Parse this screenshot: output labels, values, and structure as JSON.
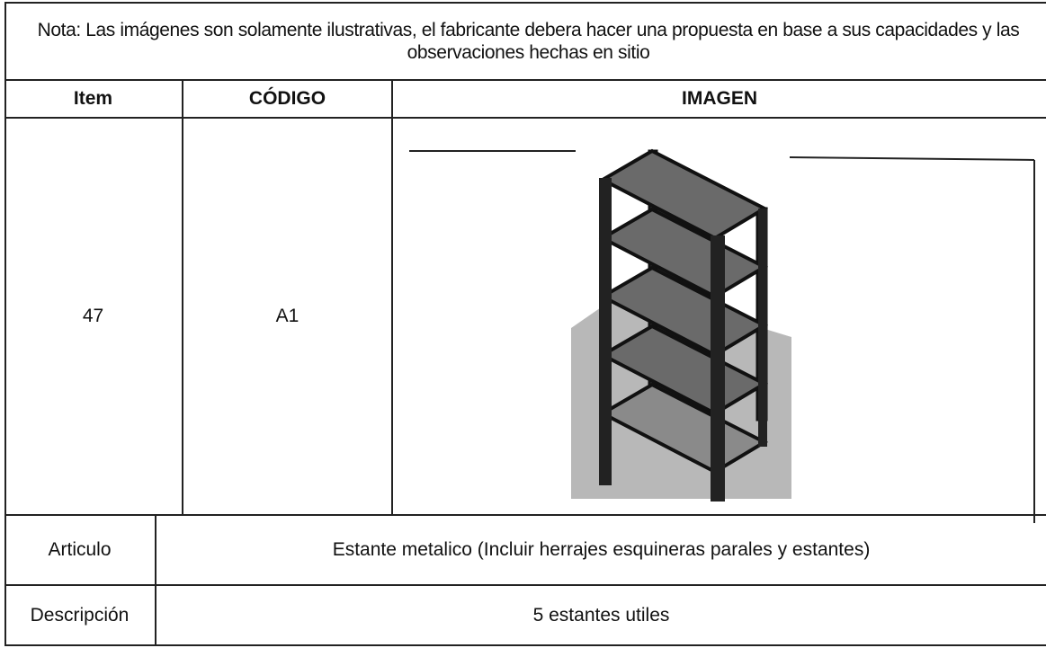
{
  "note": "Nota: Las imágenes son solamente ilustrativas, el fabricante debera hacer una propuesta en base a sus capacidades y las observaciones hechas en sitio",
  "table": {
    "headers": [
      "Item",
      "CÓDIGO",
      "IMAGEN"
    ],
    "item_row": {
      "item": "47",
      "code": "A1"
    },
    "rows": [
      [
        "Articulo",
        "Estante metalico (Incluir herrajes esquineras parales y estantes)"
      ],
      [
        "Descripción",
        "5 estantes utiles"
      ]
    ]
  }
}
